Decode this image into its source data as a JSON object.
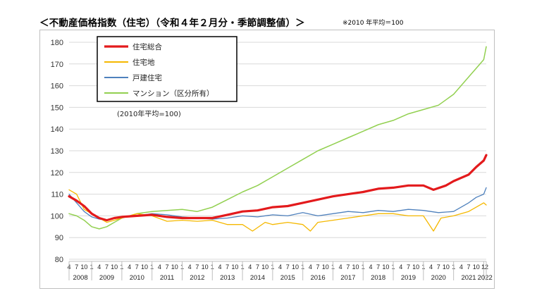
{
  "title": "＜不動産価格指数（住宅）（令和４年２月分・季節調整値）＞",
  "note": "※2010 年平均＝100",
  "chart_data": {
    "type": "line",
    "base_label": "(2010年平均=100)",
    "ylim": [
      80,
      180
    ],
    "yticks": [
      80,
      90,
      100,
      110,
      120,
      130,
      140,
      150,
      160,
      170,
      180
    ],
    "grid": "horizontal",
    "legend_position": "top-left",
    "x_start": "2008-04",
    "x_end": "2022-02",
    "years": [
      "2008",
      "2009",
      "2010",
      "2011",
      "2012",
      "2013",
      "2014",
      "2015",
      "2016",
      "2017",
      "2018",
      "2019",
      "2020",
      "2021",
      "2022"
    ],
    "month_labels": [
      "4",
      "7",
      "10",
      "1"
    ],
    "series": [
      {
        "name": "住宅総合",
        "color": "#e31a1c",
        "width": 3.2,
        "points": [
          [
            "2008-04",
            109
          ],
          [
            "2008-07",
            107
          ],
          [
            "2008-10",
            104.5
          ],
          [
            "2009-01",
            101
          ],
          [
            "2009-04",
            99
          ],
          [
            "2009-07",
            98
          ],
          [
            "2009-10",
            99
          ],
          [
            "2010-01",
            99.5
          ],
          [
            "2010-07",
            100
          ],
          [
            "2011-01",
            100.5
          ],
          [
            "2011-07",
            99.5
          ],
          [
            "2012-01",
            99
          ],
          [
            "2012-07",
            99
          ],
          [
            "2013-01",
            99
          ],
          [
            "2013-07",
            100.5
          ],
          [
            "2014-01",
            102
          ],
          [
            "2014-07",
            102.5
          ],
          [
            "2015-01",
            104
          ],
          [
            "2015-07",
            104.5
          ],
          [
            "2016-01",
            106
          ],
          [
            "2016-07",
            107.5
          ],
          [
            "2017-01",
            109
          ],
          [
            "2017-07",
            110
          ],
          [
            "2018-01",
            111
          ],
          [
            "2018-07",
            112.5
          ],
          [
            "2019-01",
            113
          ],
          [
            "2019-07",
            114
          ],
          [
            "2020-01",
            114
          ],
          [
            "2020-05",
            112
          ],
          [
            "2020-10",
            114
          ],
          [
            "2021-01",
            116
          ],
          [
            "2021-07",
            119
          ],
          [
            "2021-10",
            122.5
          ],
          [
            "2022-01",
            125.5
          ],
          [
            "2022-02",
            128
          ]
        ]
      },
      {
        "name": "住宅地",
        "color": "#f5b800",
        "width": 1.3,
        "points": [
          [
            "2008-04",
            112
          ],
          [
            "2008-07",
            110
          ],
          [
            "2008-10",
            103
          ],
          [
            "2009-01",
            101
          ],
          [
            "2009-04",
            99
          ],
          [
            "2009-07",
            97
          ],
          [
            "2009-10",
            98
          ],
          [
            "2010-01",
            99
          ],
          [
            "2010-07",
            101
          ],
          [
            "2011-01",
            100
          ],
          [
            "2011-07",
            97.5
          ],
          [
            "2012-01",
            98
          ],
          [
            "2012-07",
            97.5
          ],
          [
            "2013-01",
            98
          ],
          [
            "2013-07",
            96
          ],
          [
            "2014-01",
            96
          ],
          [
            "2014-05",
            93
          ],
          [
            "2014-10",
            97
          ],
          [
            "2015-01",
            96
          ],
          [
            "2015-07",
            97
          ],
          [
            "2016-01",
            96
          ],
          [
            "2016-04",
            93
          ],
          [
            "2016-07",
            97
          ],
          [
            "2017-01",
            98
          ],
          [
            "2017-07",
            99
          ],
          [
            "2018-01",
            100
          ],
          [
            "2018-07",
            101
          ],
          [
            "2019-01",
            101
          ],
          [
            "2019-07",
            100
          ],
          [
            "2020-01",
            100
          ],
          [
            "2020-05",
            93
          ],
          [
            "2020-08",
            99
          ],
          [
            "2021-01",
            100
          ],
          [
            "2021-07",
            102
          ],
          [
            "2021-10",
            104
          ],
          [
            "2022-01",
            106
          ],
          [
            "2022-02",
            105
          ]
        ]
      },
      {
        "name": "戸建住宅",
        "color": "#4f81bd",
        "width": 1.3,
        "points": [
          [
            "2008-04",
            110
          ],
          [
            "2008-07",
            106
          ],
          [
            "2008-10",
            102
          ],
          [
            "2009-01",
            99.5
          ],
          [
            "2009-04",
            98.5
          ],
          [
            "2009-07",
            98
          ],
          [
            "2009-10",
            99
          ],
          [
            "2010-01",
            99.5
          ],
          [
            "2010-07",
            100
          ],
          [
            "2011-01",
            101
          ],
          [
            "2011-07",
            100.5
          ],
          [
            "2012-01",
            99.5
          ],
          [
            "2012-07",
            99
          ],
          [
            "2013-01",
            98.5
          ],
          [
            "2013-07",
            99
          ],
          [
            "2014-01",
            100
          ],
          [
            "2014-07",
            99.5
          ],
          [
            "2015-01",
            100.5
          ],
          [
            "2015-07",
            100
          ],
          [
            "2016-01",
            101.5
          ],
          [
            "2016-07",
            100
          ],
          [
            "2017-01",
            101
          ],
          [
            "2017-07",
            102
          ],
          [
            "2018-01",
            101.5
          ],
          [
            "2018-07",
            102.5
          ],
          [
            "2019-01",
            102
          ],
          [
            "2019-07",
            103
          ],
          [
            "2020-01",
            102.5
          ],
          [
            "2020-07",
            101.5
          ],
          [
            "2021-01",
            102
          ],
          [
            "2021-07",
            106
          ],
          [
            "2021-10",
            108.5
          ],
          [
            "2022-01",
            110
          ],
          [
            "2022-02",
            113
          ]
        ]
      },
      {
        "name": "マンション（区分所有）",
        "color": "#92d050",
        "width": 1.5,
        "points": [
          [
            "2008-04",
            101
          ],
          [
            "2008-07",
            100
          ],
          [
            "2008-10",
            98
          ],
          [
            "2009-01",
            95
          ],
          [
            "2009-04",
            94
          ],
          [
            "2009-07",
            95
          ],
          [
            "2009-10",
            97
          ],
          [
            "2010-01",
            99
          ],
          [
            "2010-07",
            101
          ],
          [
            "2011-01",
            102
          ],
          [
            "2011-07",
            102.5
          ],
          [
            "2012-01",
            103
          ],
          [
            "2012-07",
            102
          ],
          [
            "2013-01",
            104
          ],
          [
            "2013-07",
            107.5
          ],
          [
            "2014-01",
            111
          ],
          [
            "2014-07",
            114
          ],
          [
            "2015-01",
            118
          ],
          [
            "2015-07",
            122
          ],
          [
            "2016-01",
            126
          ],
          [
            "2016-07",
            130
          ],
          [
            "2017-01",
            133
          ],
          [
            "2017-07",
            136
          ],
          [
            "2018-01",
            139
          ],
          [
            "2018-07",
            142
          ],
          [
            "2019-01",
            144
          ],
          [
            "2019-07",
            147
          ],
          [
            "2020-01",
            149
          ],
          [
            "2020-07",
            151
          ],
          [
            "2021-01",
            156
          ],
          [
            "2021-07",
            164
          ],
          [
            "2021-10",
            168
          ],
          [
            "2022-01",
            172
          ],
          [
            "2022-02",
            178
          ]
        ]
      }
    ]
  }
}
